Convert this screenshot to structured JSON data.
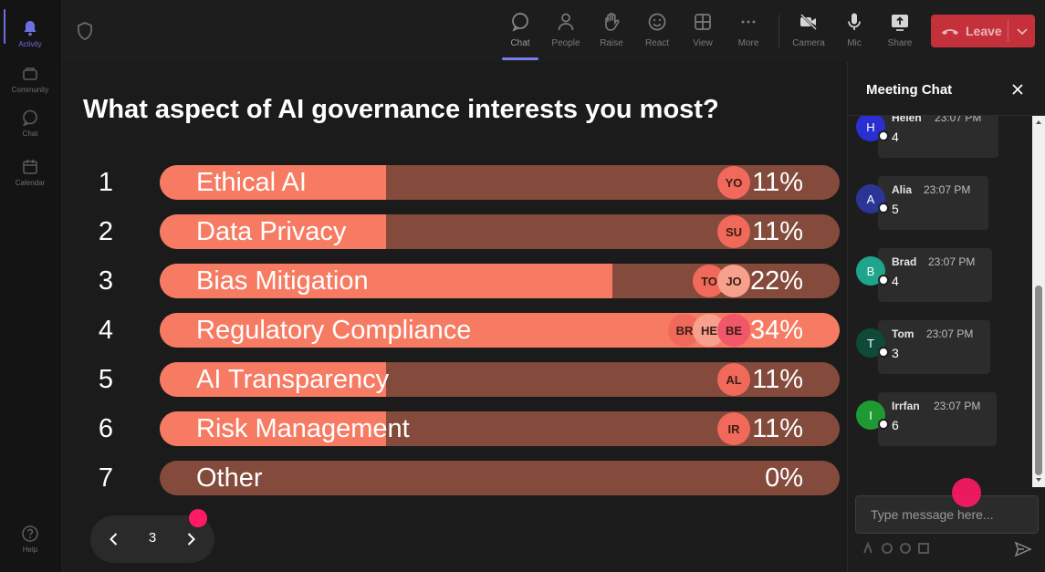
{
  "rail": {
    "items": [
      {
        "label": "Activity",
        "icon": "bell-icon"
      },
      {
        "label": "Community",
        "icon": "community-icon"
      },
      {
        "label": "Chat",
        "icon": "chat-icon"
      },
      {
        "label": "Calendar",
        "icon": "calendar-icon"
      }
    ],
    "help": {
      "label": "Help",
      "icon": "help-icon"
    }
  },
  "toolbar": {
    "buttons": [
      {
        "label": "Chat",
        "icon": "chat-icon"
      },
      {
        "label": "People",
        "icon": "people-icon"
      },
      {
        "label": "Raise",
        "icon": "hand-icon"
      },
      {
        "label": "React",
        "icon": "smiley-icon"
      },
      {
        "label": "View",
        "icon": "grid-icon"
      },
      {
        "label": "More",
        "icon": "more-icon"
      },
      {
        "label": "Camera",
        "icon": "camera-icon"
      },
      {
        "label": "Mic",
        "icon": "mic-icon"
      },
      {
        "label": "Share",
        "icon": "share-icon"
      }
    ],
    "leave_label": "Leave"
  },
  "poll": {
    "question": "What aspect of AI governance interests you most?",
    "options": [
      {
        "num": "1",
        "label": "Ethical AI",
        "pct": "11%",
        "fraction": 0.11,
        "voters": [
          "YO"
        ]
      },
      {
        "num": "2",
        "label": "Data Privacy",
        "pct": "11%",
        "fraction": 0.11,
        "voters": [
          "SU"
        ]
      },
      {
        "num": "3",
        "label": "Bias Mitigation",
        "pct": "22%",
        "fraction": 0.22,
        "voters": [
          "TO",
          "JO"
        ]
      },
      {
        "num": "4",
        "label": "Regulatory Compliance",
        "pct": "34%",
        "fraction": 0.34,
        "voters": [
          "BR",
          "HE",
          "BE"
        ]
      },
      {
        "num": "5",
        "label": "AI Transparency",
        "pct": "11%",
        "fraction": 0.11,
        "voters": [
          "AL"
        ]
      },
      {
        "num": "6",
        "label": "Risk Management",
        "pct": "11%",
        "fraction": 0.11,
        "voters": [
          "IR"
        ]
      },
      {
        "num": "7",
        "label": "Other",
        "pct": "0%",
        "fraction": 0,
        "voters": []
      }
    ],
    "page": "3"
  },
  "colors": {
    "bar_track": "#844a3b",
    "bar_fill": "#f77b62",
    "accent": "#6b6fe0",
    "leave": "#c4313b",
    "pointer_dot": "#ff1a64"
  },
  "chat": {
    "title": "Meeting Chat",
    "messages": [
      {
        "initial": "H",
        "name": "Helen",
        "time": "23:07 PM",
        "text": "4",
        "color": "#2a2fd1"
      },
      {
        "initial": "A",
        "name": "Alia",
        "time": "23:07 PM",
        "text": "5",
        "color": "#2b3596"
      },
      {
        "initial": "B",
        "name": "Brad",
        "time": "23:07 PM",
        "text": "4",
        "color": "#1fa58b"
      },
      {
        "initial": "T",
        "name": "Tom",
        "time": "23:07 PM",
        "text": "3",
        "color": "#0f4a38"
      },
      {
        "initial": "I",
        "name": "Irrfan",
        "time": "23:07 PM",
        "text": "6",
        "color": "#1f9a32"
      }
    ],
    "input_placeholder": "Type message here..."
  }
}
